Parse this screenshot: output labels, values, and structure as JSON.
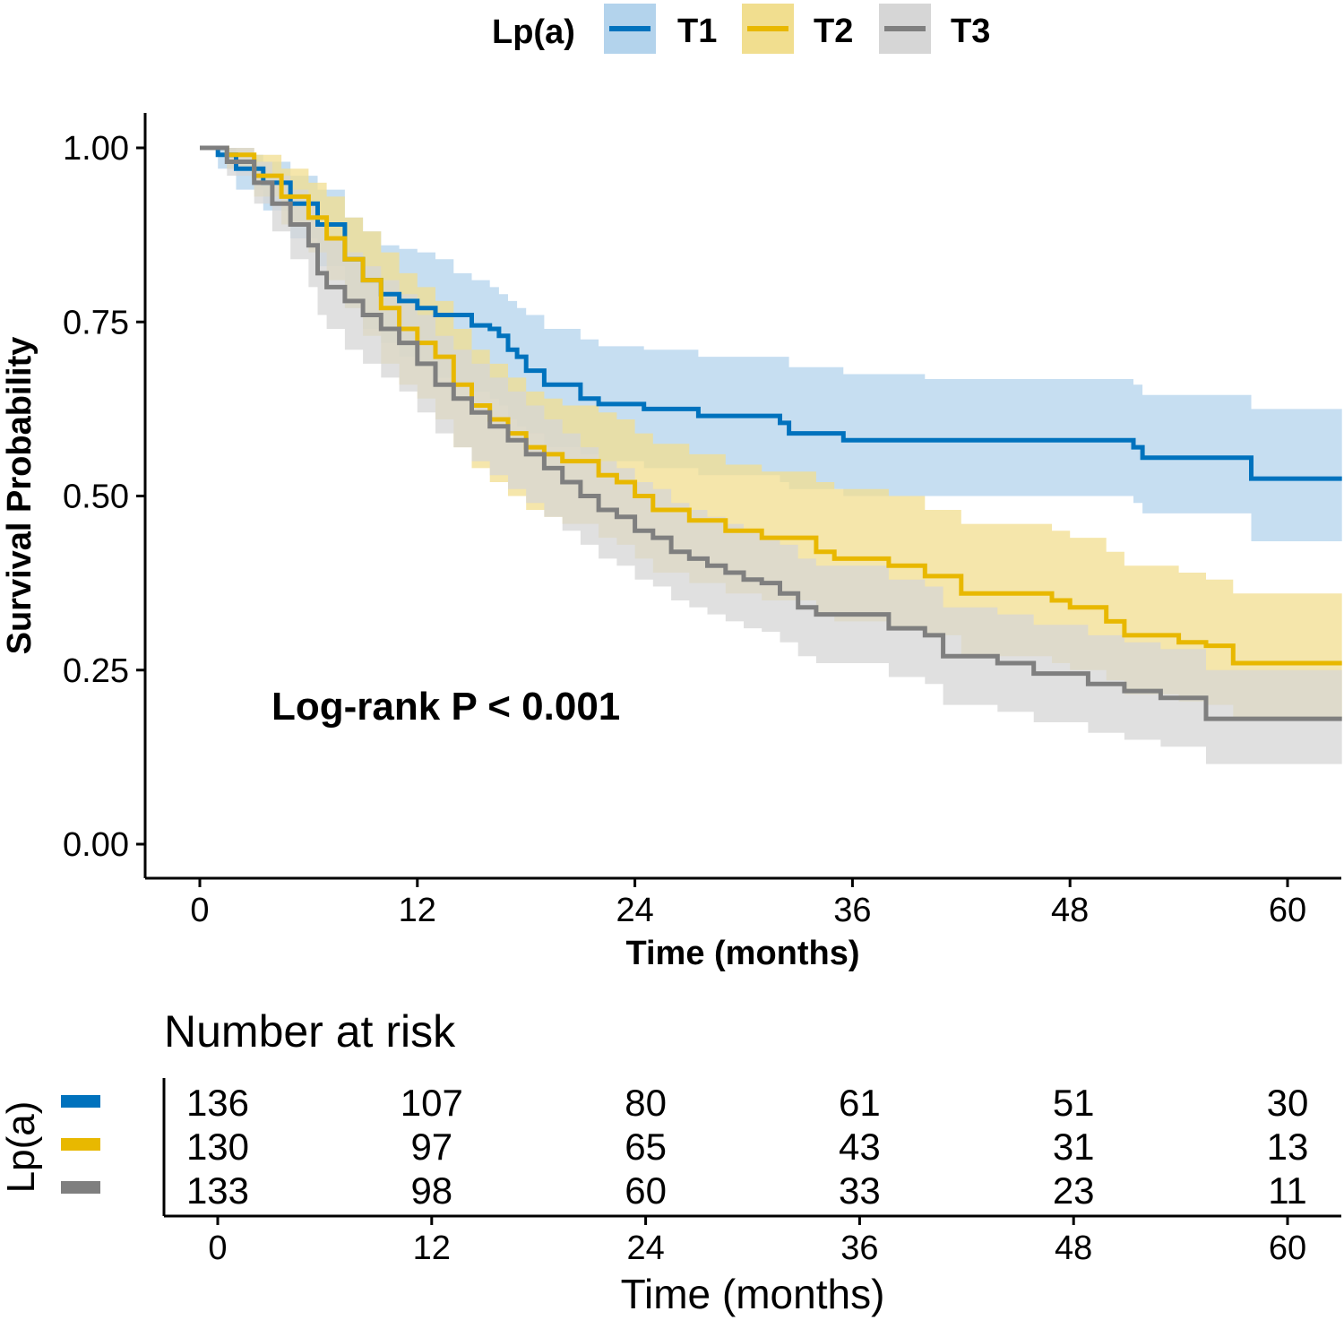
{
  "chart_data": {
    "type": "line",
    "subtype": "kaplan-meier",
    "legend": {
      "title": "Lp(a)",
      "entries": [
        "T1",
        "T2",
        "T3"
      ],
      "placement": "top"
    },
    "colors": {
      "T1": "#0072BD",
      "T2": "#E8B800",
      "T3": "#7F7F7F",
      "T1_band": "#B3D3EC",
      "T2_band": "#F1DE8F",
      "T3_band": "#D6D6D6"
    },
    "xlabel": "Time (months)",
    "ylabel": "Survival Probability",
    "xlim": [
      -3,
      63
    ],
    "ylim": [
      -0.05,
      1.05
    ],
    "xticks": [
      0,
      12,
      24,
      36,
      48,
      60
    ],
    "yticks": [
      0.0,
      0.25,
      0.5,
      0.75,
      1.0
    ],
    "ytick_labels": [
      "0.00",
      "0.25",
      "0.50",
      "0.75",
      "1.00"
    ],
    "annotation": "Log-rank P < 0.001",
    "series": [
      {
        "name": "T1",
        "times": [
          0,
          1,
          2,
          3.5,
          5,
          6.5,
          8,
          9,
          10,
          11,
          12,
          13,
          14,
          15,
          16,
          16.5,
          17,
          17.5,
          18,
          19,
          21,
          22,
          24.5,
          27.5,
          32,
          32.5,
          35.5,
          40,
          47.5,
          51.5,
          52,
          57.5,
          58,
          63
        ],
        "values": [
          1.0,
          0.99,
          0.97,
          0.95,
          0.92,
          0.89,
          0.84,
          0.81,
          0.79,
          0.78,
          0.77,
          0.76,
          0.76,
          0.745,
          0.74,
          0.73,
          0.71,
          0.7,
          0.68,
          0.66,
          0.64,
          0.632,
          0.625,
          0.615,
          0.605,
          0.59,
          0.58,
          0.58,
          0.58,
          0.57,
          0.555,
          0.555,
          0.525,
          0.525
        ],
        "upper": [
          1.0,
          1.0,
          0.99,
          0.98,
          0.96,
          0.94,
          0.9,
          0.88,
          0.86,
          0.855,
          0.85,
          0.84,
          0.82,
          0.81,
          0.8,
          0.79,
          0.78,
          0.77,
          0.76,
          0.74,
          0.725,
          0.715,
          0.71,
          0.7,
          0.7,
          0.685,
          0.675,
          0.668,
          0.668,
          0.66,
          0.645,
          0.645,
          0.625,
          0.625
        ],
        "lower": [
          1.0,
          0.97,
          0.94,
          0.91,
          0.87,
          0.83,
          0.77,
          0.74,
          0.72,
          0.7,
          0.69,
          0.67,
          0.66,
          0.65,
          0.64,
          0.63,
          0.61,
          0.6,
          0.59,
          0.57,
          0.56,
          0.55,
          0.54,
          0.53,
          0.52,
          0.51,
          0.5,
          0.5,
          0.5,
          0.49,
          0.475,
          0.475,
          0.435,
          0.435
        ]
      },
      {
        "name": "T2",
        "times": [
          0,
          1.5,
          3,
          4.5,
          6,
          7,
          8,
          9,
          10,
          11,
          12,
          13,
          14,
          15,
          16,
          17,
          18,
          19,
          20,
          22,
          23,
          24,
          25,
          27,
          29,
          31,
          34,
          35,
          38,
          40,
          42,
          47,
          48,
          50,
          51,
          54,
          55.5,
          57,
          63
        ],
        "values": [
          1.0,
          0.99,
          0.96,
          0.93,
          0.9,
          0.87,
          0.84,
          0.81,
          0.77,
          0.74,
          0.72,
          0.7,
          0.66,
          0.63,
          0.61,
          0.59,
          0.57,
          0.56,
          0.55,
          0.53,
          0.52,
          0.5,
          0.48,
          0.465,
          0.45,
          0.44,
          0.42,
          0.41,
          0.4,
          0.385,
          0.36,
          0.35,
          0.34,
          0.32,
          0.3,
          0.29,
          0.285,
          0.26,
          0.26
        ],
        "upper": [
          1.0,
          1.0,
          0.99,
          0.97,
          0.95,
          0.93,
          0.9,
          0.88,
          0.85,
          0.82,
          0.8,
          0.78,
          0.74,
          0.71,
          0.69,
          0.67,
          0.65,
          0.64,
          0.63,
          0.62,
          0.61,
          0.59,
          0.575,
          0.56,
          0.545,
          0.535,
          0.52,
          0.51,
          0.5,
          0.48,
          0.46,
          0.45,
          0.44,
          0.42,
          0.4,
          0.39,
          0.38,
          0.36,
          0.36
        ],
        "lower": [
          1.0,
          0.97,
          0.93,
          0.89,
          0.85,
          0.81,
          0.77,
          0.73,
          0.69,
          0.66,
          0.64,
          0.61,
          0.57,
          0.54,
          0.52,
          0.5,
          0.48,
          0.47,
          0.46,
          0.44,
          0.43,
          0.41,
          0.39,
          0.375,
          0.36,
          0.35,
          0.33,
          0.32,
          0.31,
          0.3,
          0.27,
          0.26,
          0.25,
          0.235,
          0.215,
          0.205,
          0.2,
          0.18,
          0.18
        ]
      },
      {
        "name": "T3",
        "times": [
          0,
          1.5,
          3,
          4,
          5,
          6,
          6.5,
          7,
          8,
          9,
          10,
          11,
          12,
          13,
          14,
          15,
          16,
          17,
          18,
          19,
          20,
          21,
          22,
          23,
          24,
          25,
          26,
          27,
          28,
          29,
          30,
          31,
          32,
          33,
          34,
          36,
          38,
          40,
          41,
          42,
          44,
          46,
          49,
          51,
          53,
          55.5,
          63
        ],
        "values": [
          1.0,
          0.98,
          0.95,
          0.92,
          0.89,
          0.86,
          0.82,
          0.8,
          0.78,
          0.76,
          0.74,
          0.72,
          0.69,
          0.66,
          0.64,
          0.62,
          0.6,
          0.58,
          0.56,
          0.54,
          0.52,
          0.5,
          0.48,
          0.47,
          0.45,
          0.44,
          0.42,
          0.41,
          0.4,
          0.39,
          0.38,
          0.375,
          0.36,
          0.34,
          0.33,
          0.33,
          0.31,
          0.3,
          0.27,
          0.27,
          0.26,
          0.245,
          0.23,
          0.22,
          0.21,
          0.18,
          0.18
        ],
        "upper": [
          1.0,
          1.0,
          0.98,
          0.96,
          0.94,
          0.92,
          0.89,
          0.87,
          0.85,
          0.83,
          0.81,
          0.79,
          0.76,
          0.73,
          0.71,
          0.69,
          0.67,
          0.65,
          0.63,
          0.61,
          0.59,
          0.57,
          0.55,
          0.54,
          0.52,
          0.51,
          0.49,
          0.48,
          0.47,
          0.46,
          0.45,
          0.44,
          0.43,
          0.41,
          0.4,
          0.4,
          0.38,
          0.37,
          0.34,
          0.34,
          0.33,
          0.315,
          0.3,
          0.29,
          0.28,
          0.25,
          0.25
        ],
        "lower": [
          1.0,
          0.96,
          0.92,
          0.88,
          0.84,
          0.8,
          0.76,
          0.74,
          0.71,
          0.69,
          0.67,
          0.65,
          0.62,
          0.59,
          0.57,
          0.55,
          0.53,
          0.51,
          0.49,
          0.47,
          0.45,
          0.43,
          0.41,
          0.4,
          0.38,
          0.37,
          0.35,
          0.34,
          0.33,
          0.32,
          0.31,
          0.305,
          0.29,
          0.27,
          0.26,
          0.26,
          0.24,
          0.23,
          0.2,
          0.2,
          0.19,
          0.175,
          0.16,
          0.15,
          0.14,
          0.115,
          0.115
        ]
      }
    ],
    "risk_table": {
      "title": "Number at risk",
      "group_label": "Lp(a)",
      "xlabel": "Time (months)",
      "times": [
        0,
        12,
        24,
        36,
        48,
        60
      ],
      "rows": [
        {
          "name": "T1",
          "counts": [
            136,
            107,
            80,
            61,
            51,
            30
          ]
        },
        {
          "name": "T2",
          "counts": [
            130,
            97,
            65,
            43,
            31,
            13
          ]
        },
        {
          "name": "T3",
          "counts": [
            133,
            98,
            60,
            33,
            23,
            11
          ]
        }
      ]
    }
  }
}
